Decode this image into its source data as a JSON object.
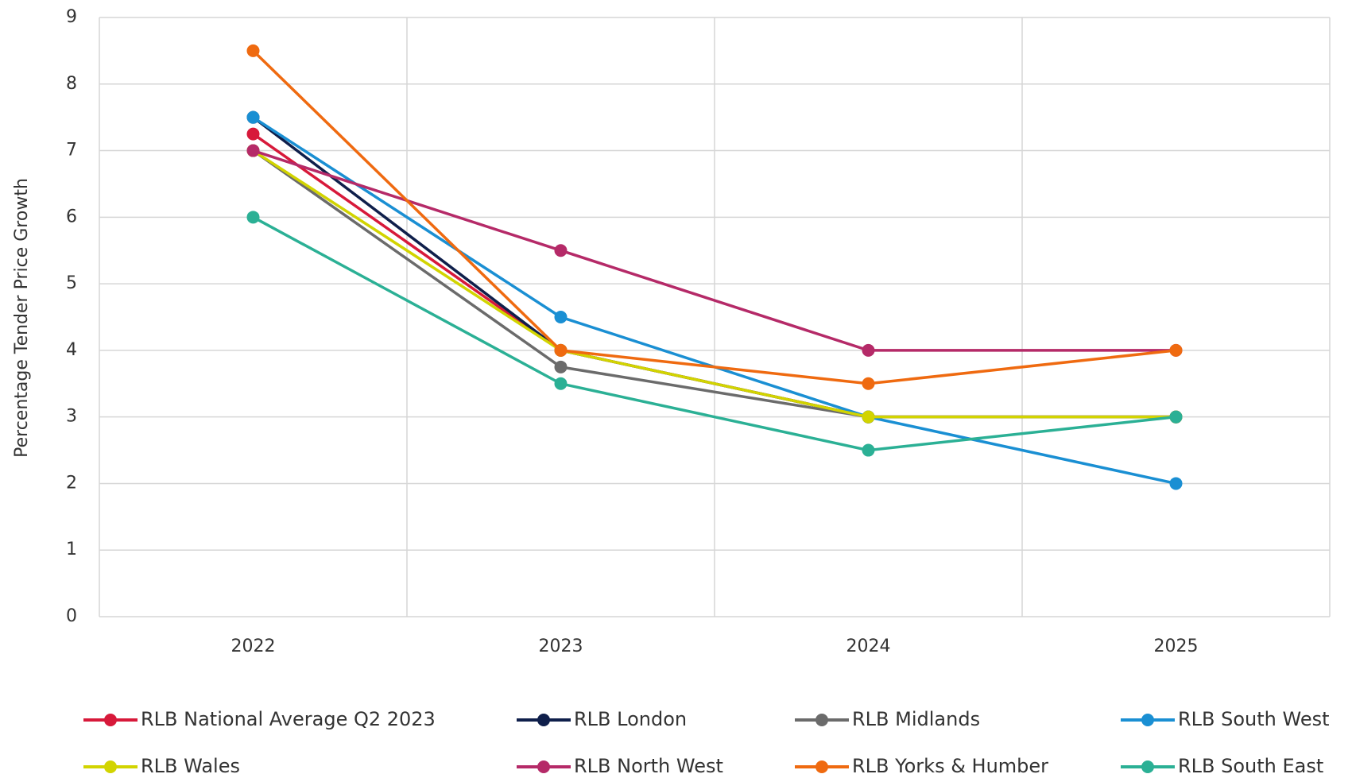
{
  "chart_data": {
    "type": "line",
    "y_label": "Percentage Tender Price Growth",
    "categories": [
      "2022",
      "2023",
      "2024",
      "2025"
    ],
    "ylim": [
      0,
      9
    ],
    "yticks": [
      0,
      1,
      2,
      3,
      4,
      5,
      6,
      7,
      8,
      9
    ],
    "grid": true,
    "legend": "bottom",
    "series": [
      {
        "name": "RLB National Average Q2 2023",
        "color": "#d7193a",
        "values": [
          7.25,
          4,
          3,
          3
        ]
      },
      {
        "name": "RLB London",
        "color": "#0f1f4b",
        "values": [
          7.5,
          4,
          3,
          3
        ]
      },
      {
        "name": "RLB Midlands",
        "color": "#6b6b6b",
        "values": [
          7,
          3.75,
          3,
          3
        ]
      },
      {
        "name": "RLB South West",
        "color": "#1a8fd3",
        "values": [
          7.5,
          4.5,
          3,
          2
        ]
      },
      {
        "name": "RLB Wales",
        "color": "#d2d400",
        "values": [
          7,
          4,
          3,
          3
        ]
      },
      {
        "name": "RLB North West",
        "color": "#b52a68",
        "values": [
          7,
          5.5,
          4,
          4
        ]
      },
      {
        "name": "RLB Yorks & Humber",
        "color": "#ef6a10",
        "values": [
          8.5,
          4,
          3.5,
          4
        ]
      },
      {
        "name": "RLB South East",
        "color": "#2bb095",
        "values": [
          6,
          3.5,
          2.5,
          3
        ]
      }
    ]
  }
}
